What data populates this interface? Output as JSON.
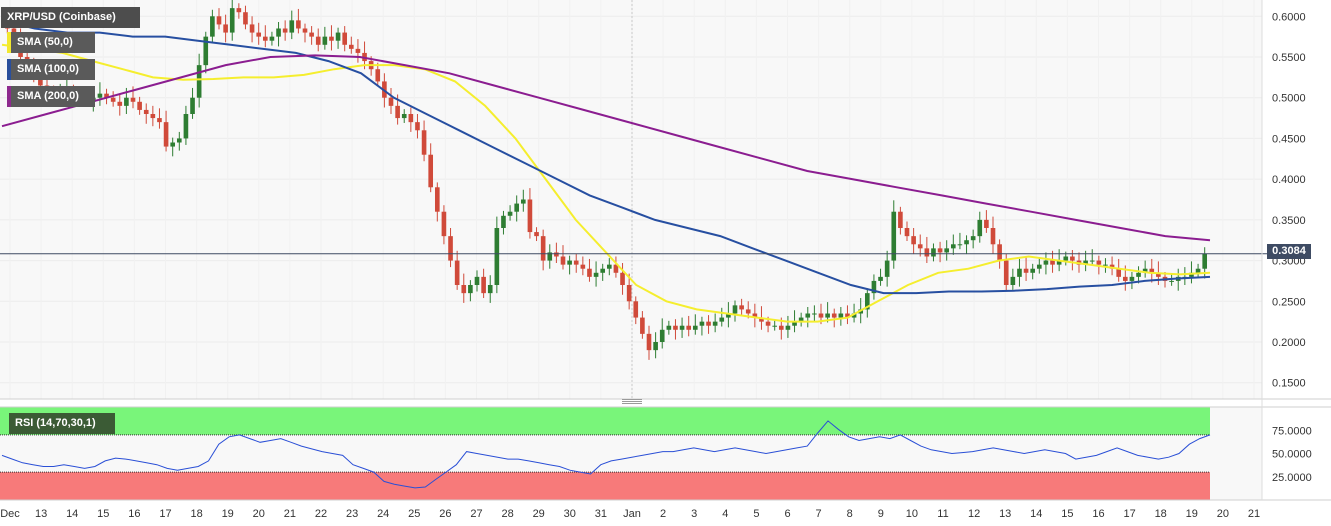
{
  "title": "XRP/USD (Coinbase)",
  "indicators": {
    "sma50": "SMA (50,0)",
    "sma100": "SMA (100,0)",
    "sma200": "SMA (200,0)",
    "rsi": "RSI (14,70,30,1)"
  },
  "current_price_label": "0.3084",
  "colors": {
    "up": "#2e7d32",
    "down": "#d04a3a",
    "sma50": "#f5ee2e",
    "sma100": "#274fa1",
    "sma200": "#8b1d90",
    "rsi_line": "#2a4fd6",
    "overbought_zone": "#79f57a",
    "oversold_zone": "#f77a7a"
  },
  "chart_data": [
    {
      "type": "candlestick",
      "title": "XRP/USD (Coinbase)",
      "ylim": [
        0.13,
        0.62
      ],
      "y_ticks": [
        "0.6000",
        "0.5500",
        "0.5000",
        "0.4500",
        "0.4000",
        "0.3500",
        "0.3000",
        "0.2500",
        "0.2000",
        "0.1500"
      ],
      "x_ticks": [
        "Dec",
        "13",
        "14",
        "15",
        "16",
        "17",
        "18",
        "19",
        "20",
        "21",
        "22",
        "23",
        "24",
        "25",
        "26",
        "27",
        "28",
        "29",
        "30",
        "31",
        "Jan",
        "2",
        "3",
        "4",
        "5",
        "6",
        "7",
        "8",
        "9",
        "10",
        "11",
        "12",
        "13",
        "14",
        "15",
        "16",
        "17",
        "18",
        "19",
        "20",
        "21"
      ],
      "current_price": 0.3084,
      "close_series": [
        0.585,
        0.575,
        0.55,
        0.535,
        0.525,
        0.515,
        0.505,
        0.5,
        0.505,
        0.51,
        0.505,
        0.5,
        0.495,
        0.5,
        0.505,
        0.5,
        0.495,
        0.49,
        0.5,
        0.495,
        0.485,
        0.48,
        0.475,
        0.47,
        0.44,
        0.445,
        0.45,
        0.48,
        0.5,
        0.54,
        0.575,
        0.6,
        0.59,
        0.58,
        0.61,
        0.605,
        0.59,
        0.58,
        0.575,
        0.57,
        0.575,
        0.585,
        0.58,
        0.595,
        0.585,
        0.58,
        0.575,
        0.565,
        0.575,
        0.57,
        0.58,
        0.565,
        0.56,
        0.555,
        0.545,
        0.535,
        0.52,
        0.5,
        0.49,
        0.475,
        0.48,
        0.47,
        0.46,
        0.43,
        0.39,
        0.36,
        0.33,
        0.3,
        0.27,
        0.26,
        0.27,
        0.28,
        0.26,
        0.27,
        0.34,
        0.355,
        0.36,
        0.37,
        0.375,
        0.335,
        0.33,
        0.3,
        0.31,
        0.305,
        0.295,
        0.3,
        0.295,
        0.29,
        0.28,
        0.285,
        0.29,
        0.295,
        0.285,
        0.27,
        0.25,
        0.23,
        0.21,
        0.19,
        0.2,
        0.215,
        0.22,
        0.215,
        0.22,
        0.215,
        0.22,
        0.225,
        0.22,
        0.225,
        0.23,
        0.235,
        0.245,
        0.24,
        0.235,
        0.23,
        0.225,
        0.22,
        0.22,
        0.215,
        0.22,
        0.225,
        0.23,
        0.235,
        0.235,
        0.23,
        0.235,
        0.23,
        0.235,
        0.23,
        0.235,
        0.24,
        0.26,
        0.275,
        0.28,
        0.3,
        0.36,
        0.34,
        0.33,
        0.32,
        0.315,
        0.305,
        0.315,
        0.31,
        0.315,
        0.32,
        0.32,
        0.325,
        0.33,
        0.35,
        0.34,
        0.32,
        0.3,
        0.27,
        0.28,
        0.29,
        0.285,
        0.29,
        0.295,
        0.3,
        0.295,
        0.3,
        0.305,
        0.3,
        0.295,
        0.3,
        0.3,
        0.295,
        0.295,
        0.29,
        0.28,
        0.275,
        0.28,
        0.285,
        0.29,
        0.285,
        0.28,
        0.275,
        0.275,
        0.28,
        0.28,
        0.285,
        0.29,
        0.3084
      ],
      "series": [
        {
          "name": "SMA (50,0)",
          "values": [
            0.565,
            0.56,
            0.555,
            0.545,
            0.535,
            0.525,
            0.522,
            0.523,
            0.525,
            0.525,
            0.528,
            0.535,
            0.54,
            0.54,
            0.535,
            0.52,
            0.49,
            0.45,
            0.4,
            0.35,
            0.31,
            0.27,
            0.25,
            0.24,
            0.235,
            0.23,
            0.225,
            0.225,
            0.23,
            0.25,
            0.27,
            0.285,
            0.29,
            0.3,
            0.305,
            0.3,
            0.295,
            0.29,
            0.285,
            0.283,
            0.285
          ]
        },
        {
          "name": "SMA (100,0)",
          "values": [
            0.595,
            0.585,
            0.58,
            0.58,
            0.575,
            0.575,
            0.57,
            0.565,
            0.56,
            0.555,
            0.545,
            0.53,
            0.5,
            0.48,
            0.46,
            0.44,
            0.42,
            0.4,
            0.38,
            0.365,
            0.35,
            0.34,
            0.33,
            0.315,
            0.3,
            0.285,
            0.27,
            0.26,
            0.26,
            0.262,
            0.262,
            0.263,
            0.265,
            0.268,
            0.27,
            0.275,
            0.278,
            0.28
          ]
        },
        {
          "name": "SMA (200,0)",
          "values": [
            0.465,
            0.48,
            0.495,
            0.51,
            0.525,
            0.54,
            0.55,
            0.552,
            0.55,
            0.54,
            0.53,
            0.515,
            0.5,
            0.485,
            0.47,
            0.455,
            0.44,
            0.425,
            0.41,
            0.4,
            0.39,
            0.38,
            0.37,
            0.36,
            0.35,
            0.34,
            0.33,
            0.325
          ]
        }
      ]
    },
    {
      "type": "line",
      "title": "RSI (14,70,30,1)",
      "ylim": [
        0,
        100
      ],
      "y_ticks": [
        "75.0000",
        "50.0000",
        "25.0000"
      ],
      "overbought": 70,
      "oversold": 30,
      "series": [
        {
          "name": "RSI (14,70,30,1)",
          "values": [
            48,
            44,
            40,
            38,
            36,
            36,
            38,
            36,
            34,
            36,
            42,
            45,
            44,
            42,
            40,
            38,
            34,
            32,
            34,
            36,
            42,
            60,
            68,
            70,
            66,
            62,
            64,
            66,
            62,
            58,
            55,
            52,
            50,
            48,
            38,
            34,
            30,
            20,
            17,
            15,
            13,
            14,
            22,
            30,
            38,
            52,
            50,
            48,
            46,
            44,
            44,
            42,
            40,
            38,
            36,
            32,
            30,
            28,
            38,
            42,
            44,
            46,
            48,
            50,
            52,
            52,
            54,
            56,
            54,
            52,
            54,
            56,
            54,
            52,
            50,
            52,
            54,
            56,
            58,
            72,
            85,
            76,
            68,
            64,
            66,
            68,
            66,
            70,
            64,
            58,
            54,
            52,
            50,
            51,
            52,
            54,
            56,
            54,
            52,
            50,
            52,
            54,
            52,
            50,
            44,
            46,
            48,
            52,
            56,
            52,
            48,
            46,
            44,
            46,
            50,
            60,
            66,
            70
          ]
        }
      ]
    }
  ]
}
